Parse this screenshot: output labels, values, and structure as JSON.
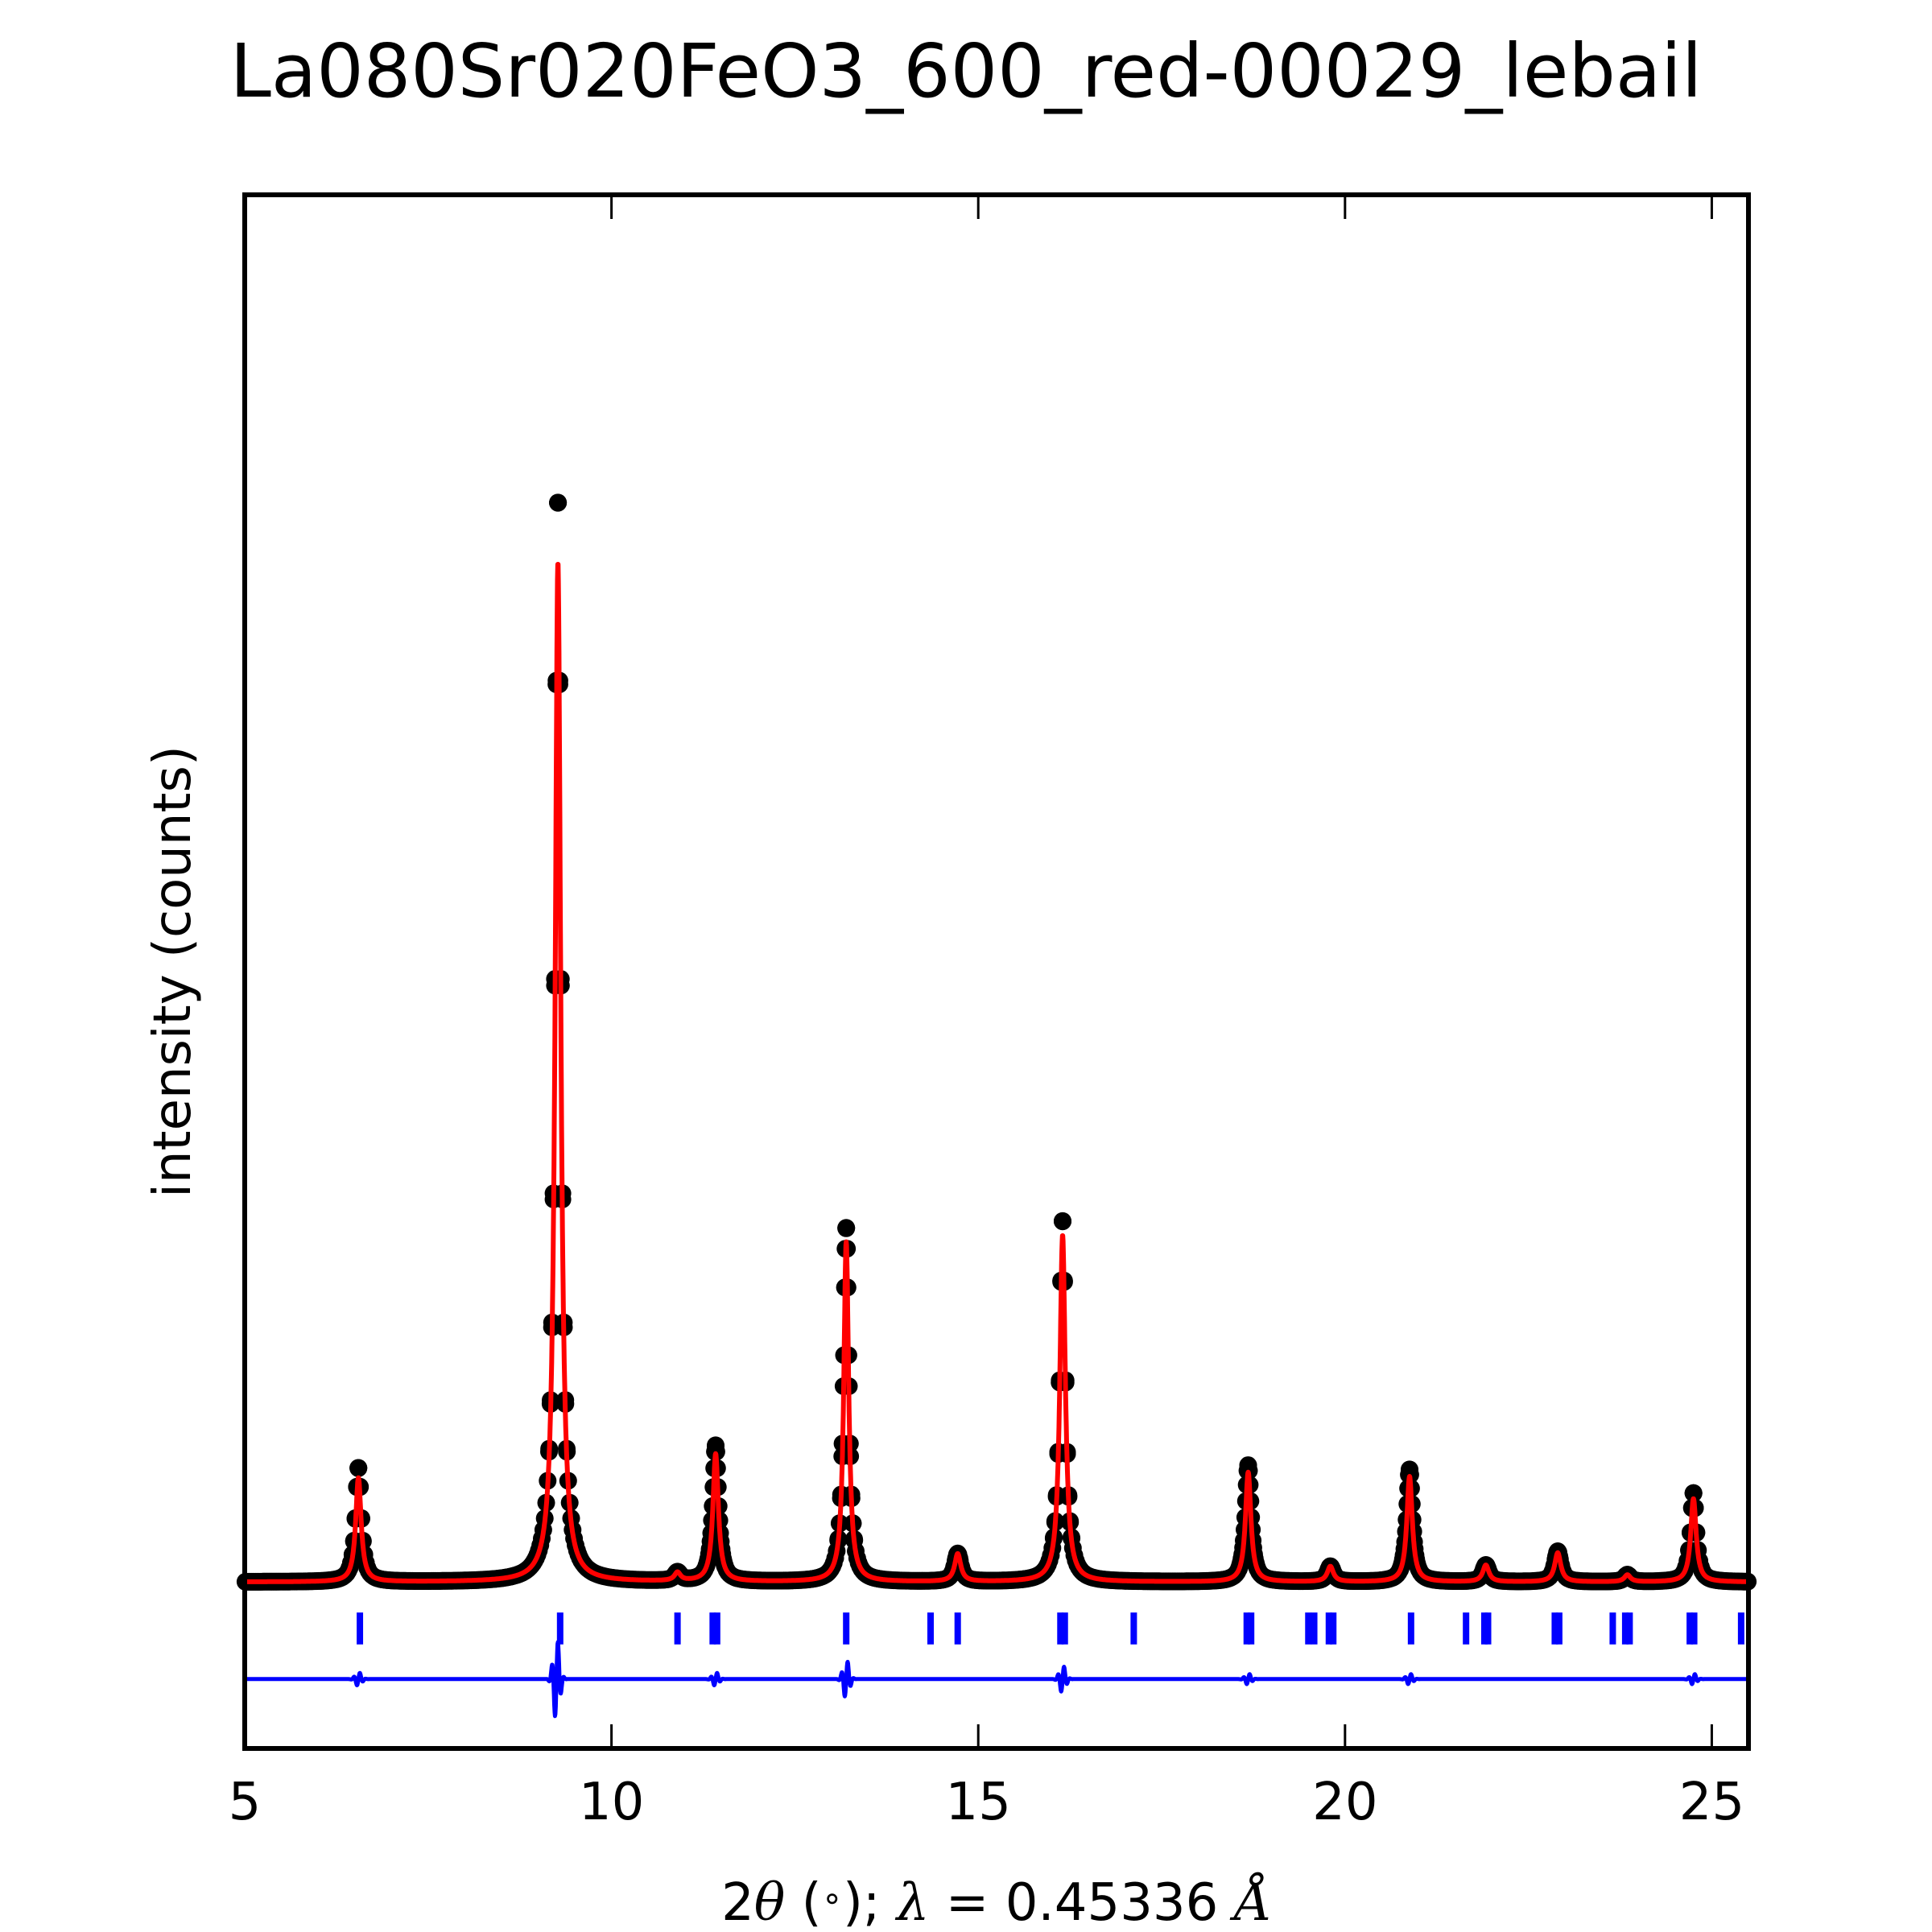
{
  "chart_data": {
    "type": "line",
    "title": "La080Sr020FeO3_600_red-00029_lebail",
    "xlabel": "2θ (°); λ = 0.45336 Å",
    "xlabel_parts": {
      "lead": "2",
      "theta": "θ",
      "paren": " (",
      "deg": "∘",
      "close": ");",
      "lambda": "λ",
      "value": " = 0.45336 ",
      "unit": "Å"
    },
    "ylabel": "intensity (counts)",
    "xlim": [
      5,
      25.5
    ],
    "ylim": [
      -0.12,
      1.0
    ],
    "xticks": [
      5,
      10,
      15,
      20,
      25
    ],
    "xtick_labels": [
      "5",
      "10",
      "15",
      "20",
      "25"
    ],
    "yticks_shown": false,
    "grid": false,
    "legend": "none",
    "background_level": 0.0,
    "peaks": [
      {
        "x": 6.55,
        "obs": 0.082,
        "calc": 0.075,
        "w": 0.045
      },
      {
        "x": 9.27,
        "obs": 0.778,
        "calc": 0.735,
        "w": 0.045
      },
      {
        "x": 10.9,
        "obs": 0.006,
        "calc": 0.006,
        "w": 0.05
      },
      {
        "x": 11.42,
        "obs": 0.098,
        "calc": 0.092,
        "w": 0.045
      },
      {
        "x": 13.2,
        "obs": 0.255,
        "calc": 0.245,
        "w": 0.04
      },
      {
        "x": 14.72,
        "obs": 0.02,
        "calc": 0.02,
        "w": 0.05
      },
      {
        "x": 16.15,
        "obs": 0.26,
        "calc": 0.25,
        "w": 0.045
      },
      {
        "x": 18.68,
        "obs": 0.084,
        "calc": 0.079,
        "w": 0.045
      },
      {
        "x": 19.8,
        "obs": 0.011,
        "calc": 0.011,
        "w": 0.05
      },
      {
        "x": 20.88,
        "obs": 0.081,
        "calc": 0.076,
        "w": 0.045
      },
      {
        "x": 21.92,
        "obs": 0.012,
        "calc": 0.012,
        "w": 0.05
      },
      {
        "x": 22.9,
        "obs": 0.022,
        "calc": 0.021,
        "w": 0.05
      },
      {
        "x": 23.85,
        "obs": 0.005,
        "calc": 0.005,
        "w": 0.05
      },
      {
        "x": 24.75,
        "obs": 0.064,
        "calc": 0.06,
        "w": 0.045
      }
    ],
    "reflection_ticks": {
      "color": "#0000ff",
      "y_range": [
        -0.022,
        -0.045
      ],
      "positions": [
        6.57,
        9.3,
        10.9,
        11.38,
        11.44,
        13.2,
        14.35,
        14.72,
        16.12,
        16.18,
        17.12,
        18.66,
        18.72,
        19.5,
        19.58,
        19.78,
        19.84,
        20.9,
        21.65,
        21.9,
        21.95,
        22.86,
        22.92,
        23.65,
        23.82,
        23.88,
        24.7,
        24.76,
        25.4
      ]
    },
    "series": [
      {
        "role": "observed",
        "color": "#000000",
        "marker": "circle",
        "source": "peaks.obs"
      },
      {
        "role": "calculated",
        "color": "#ff0000",
        "style": "line",
        "source": "peaks.calc"
      },
      {
        "role": "difference",
        "color": "#0000ff",
        "style": "line",
        "offset": -0.07,
        "features": [
          {
            "x": 6.55,
            "amp": 0.005
          },
          {
            "x": 9.25,
            "amp": 0.03
          },
          {
            "x": 11.42,
            "amp": 0.005
          },
          {
            "x": 13.2,
            "amp": 0.014
          },
          {
            "x": 16.15,
            "amp": 0.01
          },
          {
            "x": 18.68,
            "amp": 0.004
          },
          {
            "x": 20.88,
            "amp": 0.004
          },
          {
            "x": 24.75,
            "amp": 0.004
          }
        ]
      }
    ]
  }
}
